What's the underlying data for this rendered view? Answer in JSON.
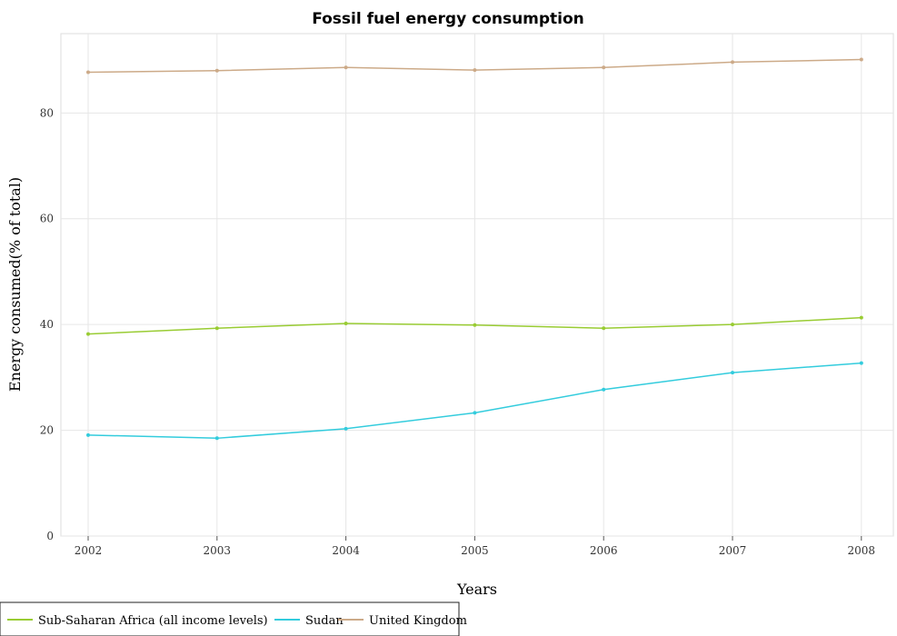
{
  "chart_data": {
    "type": "line",
    "title": "Fossil fuel energy consumption",
    "xlabel": "Years",
    "ylabel": "Energy consumed(% of total)",
    "x": [
      "2002",
      "2003",
      "2004",
      "2005",
      "2006",
      "2007",
      "2008"
    ],
    "ylim": [
      0,
      95
    ],
    "yticks": [
      0,
      20,
      40,
      60,
      80
    ],
    "grid": true,
    "legend_position": "bottom-left",
    "series": [
      {
        "name": "Sub-Saharan Africa (all income levels)",
        "color": "#99cc33",
        "values": [
          38.2,
          39.3,
          40.2,
          39.9,
          39.3,
          40.0,
          41.3
        ]
      },
      {
        "name": "Sudan",
        "color": "#33ccdd",
        "values": [
          19.1,
          18.5,
          20.3,
          23.3,
          27.7,
          30.9,
          32.7
        ]
      },
      {
        "name": "United Kingdom",
        "color": "#ccaa88",
        "values": [
          87.7,
          88.0,
          88.6,
          88.1,
          88.6,
          89.6,
          90.1
        ]
      }
    ]
  }
}
